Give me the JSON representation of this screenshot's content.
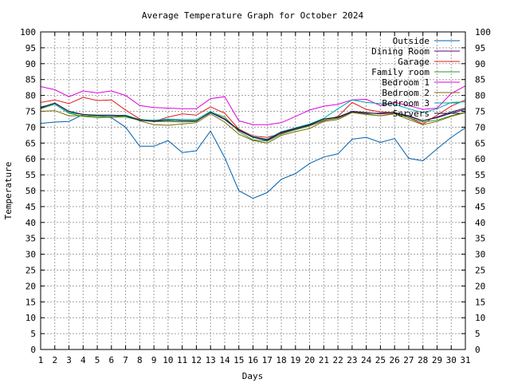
{
  "chart_data": {
    "type": "line",
    "title": "Average Temperature Graph for October 2024",
    "xlabel": "Days",
    "ylabel": "Temperature",
    "xlim": [
      1,
      31
    ],
    "ylim": [
      0,
      100
    ],
    "x_ticks": [
      1,
      2,
      3,
      4,
      5,
      6,
      7,
      8,
      9,
      10,
      11,
      12,
      13,
      14,
      15,
      16,
      17,
      18,
      19,
      20,
      21,
      22,
      23,
      24,
      25,
      26,
      27,
      28,
      29,
      30,
      31
    ],
    "y_ticks": [
      0,
      5,
      10,
      15,
      20,
      25,
      30,
      35,
      40,
      45,
      50,
      55,
      60,
      65,
      70,
      75,
      80,
      85,
      90,
      95,
      100
    ],
    "grid": true,
    "legend_position": "top-right",
    "x": [
      1,
      2,
      3,
      4,
      5,
      6,
      7,
      8,
      9,
      10,
      11,
      12,
      13,
      14,
      15,
      16,
      17,
      18,
      19,
      20,
      21,
      22,
      23,
      24,
      25,
      26,
      27,
      28,
      29,
      30,
      31
    ],
    "series": [
      {
        "name": "Outside",
        "color": "#0060ad",
        "values": [
          71.2,
          71.6,
          71.8,
          74.0,
          73.6,
          73.0,
          70.0,
          64.0,
          64.0,
          65.8,
          62.0,
          62.6,
          68.8,
          60.4,
          50.0,
          47.6,
          49.4,
          53.6,
          55.4,
          58.6,
          60.6,
          61.6,
          66.2,
          66.8,
          65.2,
          66.4,
          60.2,
          59.4,
          63.2,
          66.8,
          69.8
        ]
      },
      {
        "name": "Dining Room",
        "color": "#5c0088",
        "values": [
          76.0,
          77.6,
          75.0,
          74.0,
          73.6,
          73.6,
          73.6,
          72.4,
          72.0,
          72.2,
          72.0,
          72.0,
          74.6,
          72.4,
          69.0,
          66.8,
          65.8,
          68.2,
          69.4,
          70.6,
          72.6,
          73.0,
          74.8,
          74.4,
          74.4,
          74.6,
          73.6,
          72.0,
          73.0,
          74.4,
          75.6
        ]
      },
      {
        "name": "Garage",
        "color": "#e31a1c",
        "values": [
          77.8,
          78.6,
          77.4,
          79.4,
          78.4,
          78.6,
          75.4,
          72.6,
          71.8,
          73.2,
          74.2,
          73.8,
          76.4,
          74.4,
          69.4,
          67.2,
          66.8,
          68.0,
          69.2,
          70.4,
          72.0,
          73.4,
          77.8,
          75.6,
          74.8,
          74.6,
          73.0,
          71.0,
          73.8,
          76.6,
          78.6
        ]
      },
      {
        "name": "Family room",
        "color": "#2a9a2a",
        "values": [
          75.8,
          77.2,
          74.4,
          73.4,
          73.0,
          73.2,
          73.2,
          72.2,
          71.8,
          71.8,
          71.6,
          71.8,
          74.8,
          73.2,
          68.6,
          66.0,
          65.6,
          67.8,
          69.2,
          70.4,
          72.2,
          72.8,
          74.6,
          74.2,
          73.6,
          74.4,
          73.0,
          71.6,
          72.2,
          73.6,
          74.8
        ]
      },
      {
        "name": "Bedroom 1",
        "color": "#e000e0",
        "values": [
          82.8,
          81.8,
          79.6,
          81.4,
          80.8,
          81.4,
          80.0,
          76.8,
          76.2,
          76.0,
          75.8,
          75.8,
          79.0,
          79.6,
          72.0,
          70.8,
          70.8,
          71.4,
          73.4,
          75.4,
          76.6,
          77.2,
          78.6,
          78.8,
          76.8,
          77.8,
          76.8,
          75.6,
          76.0,
          80.6,
          83.0
        ]
      },
      {
        "name": "Bedroom 2",
        "color": "#7a6a00",
        "values": [
          75.0,
          75.2,
          73.6,
          73.6,
          73.4,
          73.2,
          73.6,
          72.0,
          70.8,
          70.6,
          71.0,
          71.4,
          74.2,
          71.6,
          67.8,
          65.8,
          65.0,
          67.4,
          68.6,
          69.6,
          71.8,
          72.4,
          74.6,
          74.0,
          73.6,
          74.2,
          72.4,
          70.8,
          71.8,
          73.4,
          74.6
        ]
      },
      {
        "name": "Bedroom 3",
        "color": "#00a8a8",
        "values": [
          76.4,
          77.2,
          74.6,
          74.0,
          73.6,
          73.6,
          73.8,
          72.4,
          72.2,
          72.6,
          72.4,
          72.4,
          75.0,
          72.6,
          69.2,
          67.0,
          66.2,
          68.6,
          69.8,
          71.0,
          72.8,
          75.8,
          78.6,
          77.8,
          77.4,
          77.2,
          75.8,
          74.6,
          75.8,
          77.8,
          78.0
        ]
      },
      {
        "name": "Servers",
        "color": "#1a1a2e",
        "values": [
          76.2,
          77.6,
          75.0,
          74.0,
          73.8,
          73.8,
          73.6,
          72.2,
          71.8,
          72.2,
          72.0,
          72.0,
          74.6,
          72.6,
          69.2,
          66.8,
          66.0,
          68.4,
          69.6,
          70.8,
          72.6,
          73.2,
          75.0,
          74.6,
          74.2,
          74.6,
          73.4,
          72.0,
          73.2,
          74.8,
          76.0
        ]
      }
    ]
  }
}
